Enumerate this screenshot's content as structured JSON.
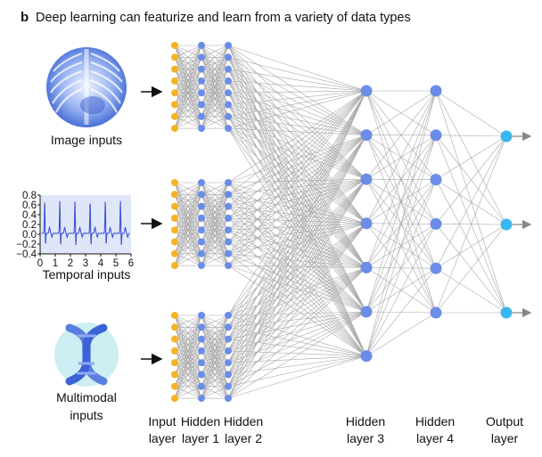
{
  "panel_label": "b",
  "title": "Deep learning can featurize and learn from a variety of data types",
  "inputs": [
    {
      "name": "image",
      "label_lines": [
        "Image inputs"
      ],
      "icon": "chest-xray-icon"
    },
    {
      "name": "temporal",
      "label_lines": [
        "Temporal inputs"
      ],
      "icon": "time-series-plot"
    },
    {
      "name": "multimodal",
      "label_lines": [
        "Multimodal",
        "inputs"
      ],
      "icon": "dna-helix-icon"
    }
  ],
  "temporal_plot": {
    "x_ticks": [
      "0",
      "1",
      "2",
      "3",
      "4",
      "5",
      "6"
    ],
    "y_ticks": [
      "0.8",
      "0.6",
      "0.4",
      "0.2",
      "0.0",
      "−0.2",
      "−0.4"
    ],
    "xlim": [
      0,
      6
    ],
    "ylim": [
      -0.4,
      0.8
    ]
  },
  "layers": [
    {
      "label_lines": [
        "Input",
        "layer"
      ],
      "nodes_per_group": 8,
      "groups": 3,
      "color": "#f5b324"
    },
    {
      "label_lines": [
        "Hidden",
        "layer 1"
      ],
      "nodes_per_group": 8,
      "groups": 3,
      "color": "#6b8de8"
    },
    {
      "label_lines": [
        "Hidden",
        "layer 2"
      ],
      "nodes_per_group": 8,
      "groups": 3,
      "color": "#6b8de8"
    },
    {
      "label_lines": [
        "Hidden",
        "layer 3"
      ],
      "nodes": 7,
      "color": "#6b8de8"
    },
    {
      "label_lines": [
        "Hidden",
        "layer 4"
      ],
      "nodes": 6,
      "color": "#6b8de8"
    },
    {
      "label_lines": [
        "Output",
        "layer"
      ],
      "nodes": 3,
      "color": "#39b7f0"
    }
  ],
  "colors": {
    "edge": "#a9a9a9",
    "text": "#111111",
    "plot_line": "#4154d6",
    "plot_bg": "#dfe6f7"
  }
}
